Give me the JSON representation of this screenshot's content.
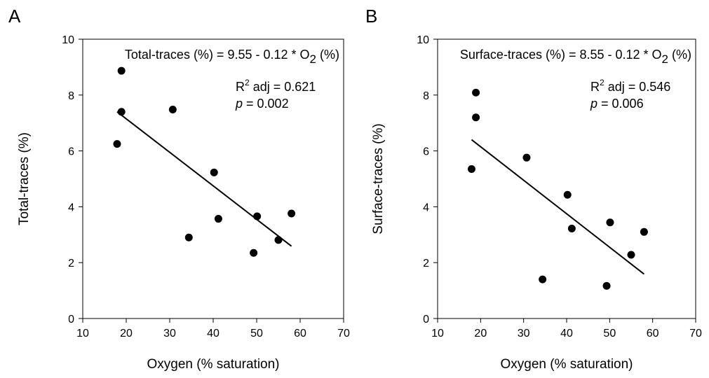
{
  "chart_data": [
    {
      "type": "scatter",
      "panel_label": "A",
      "xlabel": "Oxygen (% saturation)",
      "ylabel": "Total-traces (%)",
      "xlim": [
        10,
        70
      ],
      "ylim": [
        0,
        10
      ],
      "xticks": [
        10,
        20,
        30,
        40,
        50,
        60,
        70
      ],
      "yticks": [
        0,
        2,
        4,
        6,
        8,
        10
      ],
      "grid": false,
      "points": [
        {
          "x": 17.9,
          "y": 6.25
        },
        {
          "x": 18.9,
          "y": 8.87
        },
        {
          "x": 18.9,
          "y": 7.4
        },
        {
          "x": 30.7,
          "y": 7.48
        },
        {
          "x": 34.4,
          "y": 2.9
        },
        {
          "x": 40.2,
          "y": 5.23
        },
        {
          "x": 41.2,
          "y": 3.57
        },
        {
          "x": 49.3,
          "y": 2.35
        },
        {
          "x": 50.1,
          "y": 3.66
        },
        {
          "x": 55.0,
          "y": 2.81
        },
        {
          "x": 58.0,
          "y": 3.76
        }
      ],
      "fit": {
        "intercept": 9.55,
        "slope": -0.12,
        "x_range": [
          17.9,
          58.0
        ]
      },
      "annotation": {
        "equation_prefix": "Total-traces (%) = 9.55 - 0.12 * O",
        "equation_subscript": "2",
        "equation_suffix": " (%)",
        "r2_label": "R",
        "r2_superscript": "2",
        "r2_text": " adj = 0.621",
        "p_symbol": "p",
        "p_text": " = 0.002"
      }
    },
    {
      "type": "scatter",
      "panel_label": "B",
      "xlabel": "Oxygen (% saturation)",
      "ylabel": "Surface-traces (%)",
      "xlim": [
        10,
        70
      ],
      "ylim": [
        0,
        10
      ],
      "xticks": [
        10,
        20,
        30,
        40,
        50,
        60,
        70
      ],
      "yticks": [
        0,
        2,
        4,
        6,
        8,
        10
      ],
      "grid": false,
      "points": [
        {
          "x": 17.9,
          "y": 5.35
        },
        {
          "x": 18.9,
          "y": 8.09
        },
        {
          "x": 18.9,
          "y": 7.2
        },
        {
          "x": 30.7,
          "y": 5.76
        },
        {
          "x": 34.4,
          "y": 1.4
        },
        {
          "x": 40.2,
          "y": 4.43
        },
        {
          "x": 41.2,
          "y": 3.22
        },
        {
          "x": 49.3,
          "y": 1.17
        },
        {
          "x": 50.1,
          "y": 3.44
        },
        {
          "x": 55.0,
          "y": 2.28
        },
        {
          "x": 58.0,
          "y": 3.1
        }
      ],
      "fit": {
        "intercept": 8.55,
        "slope": -0.12,
        "x_range": [
          17.9,
          58.0
        ]
      },
      "annotation": {
        "equation_prefix": "Surface-traces (%) = 8.55 - 0.12 * O",
        "equation_subscript": "2",
        "equation_suffix": " (%)",
        "r2_label": "R",
        "r2_superscript": "2",
        "r2_text": " adj = 0.546",
        "p_symbol": "p",
        "p_text": " = 0.006"
      }
    }
  ]
}
